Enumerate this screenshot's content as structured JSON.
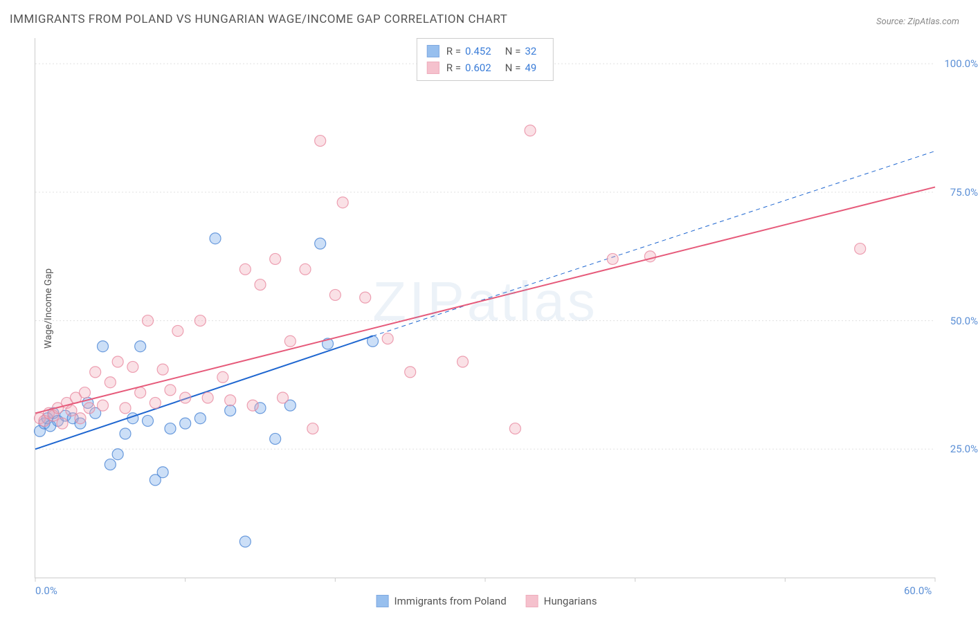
{
  "title": "IMMIGRANTS FROM POLAND VS HUNGARIAN WAGE/INCOME GAP CORRELATION CHART",
  "source": "Source: ZipAtlas.com",
  "y_axis_label": "Wage/Income Gap",
  "watermark": "ZIPatlas",
  "chart": {
    "type": "scatter",
    "xlim": [
      0,
      60
    ],
    "ylim": [
      0,
      105
    ],
    "x_ticks": [
      0,
      10,
      20,
      30,
      40,
      50,
      60
    ],
    "x_tick_labels": [
      "0.0%",
      "",
      "",
      "",
      "",
      "",
      "60.0%"
    ],
    "y_ticks": [
      25,
      50,
      75,
      100
    ],
    "y_tick_labels": [
      "25.0%",
      "50.0%",
      "75.0%",
      "100.0%"
    ],
    "grid_color": "#e0e0e0",
    "axis_color": "#cccccc",
    "background_color": "#ffffff",
    "marker_radius": 8,
    "marker_opacity": 0.35,
    "marker_stroke_opacity": 0.8,
    "line_width": 2,
    "series": [
      {
        "name": "Immigrants from Poland",
        "color": "#6ca4e8",
        "stroke": "#4a85d4",
        "line_color": "#1e66d0",
        "R": "0.452",
        "N": "32",
        "points": [
          [
            0.3,
            28.5
          ],
          [
            0.6,
            30.0
          ],
          [
            0.8,
            31.0
          ],
          [
            1.0,
            29.5
          ],
          [
            1.2,
            32.0
          ],
          [
            1.5,
            30.5
          ],
          [
            2.0,
            31.5
          ],
          [
            2.5,
            31.0
          ],
          [
            3.0,
            30.0
          ],
          [
            3.5,
            34.0
          ],
          [
            4.0,
            32.0
          ],
          [
            4.5,
            45.0
          ],
          [
            5.0,
            22.0
          ],
          [
            5.5,
            24.0
          ],
          [
            6.0,
            28.0
          ],
          [
            6.5,
            31.0
          ],
          [
            7.0,
            45.0
          ],
          [
            7.5,
            30.5
          ],
          [
            8.0,
            19.0
          ],
          [
            8.5,
            20.5
          ],
          [
            9.0,
            29.0
          ],
          [
            10.0,
            30.0
          ],
          [
            11.0,
            31.0
          ],
          [
            12.0,
            66.0
          ],
          [
            13.0,
            32.5
          ],
          [
            14.0,
            7.0
          ],
          [
            15.0,
            33.0
          ],
          [
            16.0,
            27.0
          ],
          [
            17.0,
            33.5
          ],
          [
            19.0,
            65.0
          ],
          [
            19.5,
            45.5
          ],
          [
            22.5,
            46.0
          ]
        ],
        "trend": {
          "x1": 0,
          "y1": 25.0,
          "x2": 22.5,
          "y2": 47.0
        },
        "trend_ext": {
          "x1": 22.5,
          "y1": 47.0,
          "x2": 60,
          "y2": 83.0
        }
      },
      {
        "name": "Hungarians",
        "color": "#f2a8b8",
        "stroke": "#e88aa0",
        "line_color": "#e65a7a",
        "R": "0.602",
        "N": "49",
        "points": [
          [
            0.3,
            31.0
          ],
          [
            0.6,
            30.5
          ],
          [
            0.9,
            32.0
          ],
          [
            1.2,
            31.5
          ],
          [
            1.5,
            33.0
          ],
          [
            1.8,
            30.0
          ],
          [
            2.1,
            34.0
          ],
          [
            2.4,
            32.5
          ],
          [
            2.7,
            35.0
          ],
          [
            3.0,
            31.0
          ],
          [
            3.3,
            36.0
          ],
          [
            3.6,
            33.0
          ],
          [
            4.0,
            40.0
          ],
          [
            4.5,
            33.5
          ],
          [
            5.0,
            38.0
          ],
          [
            5.5,
            42.0
          ],
          [
            6.0,
            33.0
          ],
          [
            6.5,
            41.0
          ],
          [
            7.0,
            36.0
          ],
          [
            7.5,
            50.0
          ],
          [
            8.0,
            34.0
          ],
          [
            8.5,
            40.5
          ],
          [
            9.0,
            36.5
          ],
          [
            9.5,
            48.0
          ],
          [
            10.0,
            35.0
          ],
          [
            11.0,
            50.0
          ],
          [
            11.5,
            35.0
          ],
          [
            12.5,
            39.0
          ],
          [
            13.0,
            34.5
          ],
          [
            14.0,
            60.0
          ],
          [
            14.5,
            33.5
          ],
          [
            15.0,
            57.0
          ],
          [
            16.0,
            62.0
          ],
          [
            16.5,
            35.0
          ],
          [
            17.0,
            46.0
          ],
          [
            18.0,
            60.0
          ],
          [
            18.5,
            29.0
          ],
          [
            19.0,
            85.0
          ],
          [
            20.0,
            55.0
          ],
          [
            20.5,
            73.0
          ],
          [
            22.0,
            54.5
          ],
          [
            23.5,
            46.5
          ],
          [
            25.0,
            40.0
          ],
          [
            28.5,
            42.0
          ],
          [
            32.0,
            29.0
          ],
          [
            33.0,
            87.0
          ],
          [
            38.5,
            62.0
          ],
          [
            41.0,
            62.5
          ],
          [
            55.0,
            64.0
          ]
        ],
        "trend": {
          "x1": 0,
          "y1": 32.0,
          "x2": 60,
          "y2": 76.0
        }
      }
    ]
  },
  "stats_box": {
    "rows": [
      {
        "color_idx": 0,
        "R_label": "R =",
        "N_label": "N ="
      },
      {
        "color_idx": 1,
        "R_label": "R =",
        "N_label": "N ="
      }
    ]
  },
  "bottom_legend": {
    "items": [
      {
        "color_idx": 0
      },
      {
        "color_idx": 1
      }
    ]
  }
}
